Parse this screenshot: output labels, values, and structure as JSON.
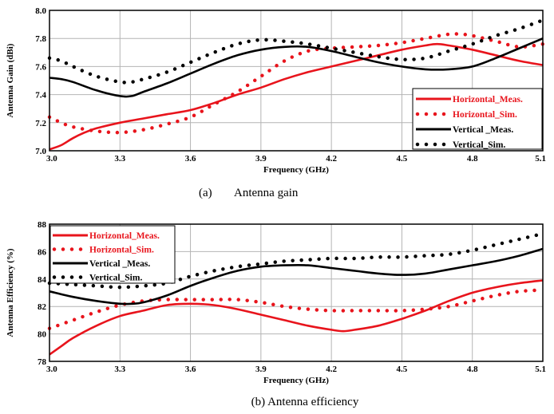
{
  "chart_data": [
    {
      "type": "line",
      "caption_label": "(a)",
      "caption_text": "Antenna gain",
      "xlabel": "Frequency (GHz)",
      "ylabel": "Antenna Gain (dBi)",
      "xlim": [
        3.0,
        5.1
      ],
      "ylim": [
        7.0,
        8.0
      ],
      "xticks": [
        "3.0",
        "3.3",
        "3.6",
        "3.9",
        "4.2",
        "4.5",
        "4.8",
        "5.1"
      ],
      "yticks": [
        "7.0",
        "7.2",
        "7.4",
        "7.6",
        "7.8",
        "8.0"
      ],
      "grid": true,
      "legend_position": "lower-right",
      "series": [
        {
          "name": "Horizontal_Meas.",
          "style": "solid",
          "color": "#e8141c",
          "x": [
            3.0,
            3.05,
            3.1,
            3.15,
            3.2,
            3.3,
            3.4,
            3.5,
            3.6,
            3.7,
            3.8,
            3.9,
            4.0,
            4.1,
            4.2,
            4.3,
            4.4,
            4.5,
            4.6,
            4.65,
            4.7,
            4.8,
            4.9,
            5.0,
            5.1
          ],
          "y": [
            7.01,
            7.04,
            7.09,
            7.13,
            7.16,
            7.2,
            7.23,
            7.26,
            7.29,
            7.34,
            7.4,
            7.45,
            7.51,
            7.56,
            7.6,
            7.64,
            7.68,
            7.72,
            7.75,
            7.76,
            7.75,
            7.72,
            7.68,
            7.64,
            7.61
          ]
        },
        {
          "name": "Horizontal_Sim.",
          "style": "dotted",
          "color": "#e8141c",
          "x": [
            3.0,
            3.05,
            3.1,
            3.2,
            3.3,
            3.4,
            3.5,
            3.6,
            3.7,
            3.8,
            3.9,
            4.0,
            4.1,
            4.2,
            4.3,
            4.4,
            4.5,
            4.6,
            4.7,
            4.75,
            4.8,
            4.9,
            5.0,
            5.1
          ],
          "y": [
            7.24,
            7.2,
            7.17,
            7.14,
            7.13,
            7.15,
            7.19,
            7.24,
            7.33,
            7.42,
            7.53,
            7.64,
            7.71,
            7.73,
            7.74,
            7.75,
            7.77,
            7.8,
            7.83,
            7.83,
            7.82,
            7.78,
            7.74,
            7.76
          ]
        },
        {
          "name": "Vertical _Meas.",
          "style": "solid",
          "color": "#000000",
          "x": [
            3.0,
            3.05,
            3.1,
            3.2,
            3.3,
            3.35,
            3.4,
            3.5,
            3.6,
            3.7,
            3.8,
            3.9,
            4.0,
            4.1,
            4.2,
            4.3,
            4.4,
            4.5,
            4.6,
            4.7,
            4.8,
            4.9,
            5.0,
            5.1
          ],
          "y": [
            7.52,
            7.51,
            7.49,
            7.43,
            7.39,
            7.39,
            7.42,
            7.48,
            7.55,
            7.62,
            7.68,
            7.72,
            7.74,
            7.74,
            7.71,
            7.67,
            7.63,
            7.6,
            7.58,
            7.58,
            7.6,
            7.66,
            7.73,
            7.8
          ]
        },
        {
          "name": "Vertical_Sim.",
          "style": "dotted",
          "color": "#000000",
          "x": [
            3.0,
            3.05,
            3.1,
            3.2,
            3.3,
            3.35,
            3.4,
            3.5,
            3.6,
            3.7,
            3.8,
            3.9,
            4.0,
            4.1,
            4.2,
            4.3,
            4.4,
            4.5,
            4.6,
            4.7,
            4.8,
            4.9,
            5.0,
            5.1
          ],
          "y": [
            7.66,
            7.64,
            7.6,
            7.53,
            7.49,
            7.49,
            7.51,
            7.56,
            7.63,
            7.7,
            7.76,
            7.79,
            7.78,
            7.76,
            7.73,
            7.7,
            7.67,
            7.65,
            7.66,
            7.71,
            7.76,
            7.82,
            7.87,
            7.93
          ]
        }
      ]
    },
    {
      "type": "line",
      "caption_label": "(b)",
      "caption_text": "Antenna efficiency",
      "xlabel": "Frequency (GHz)",
      "ylabel": "Antenna Efficiency (%)",
      "xlim": [
        3.0,
        5.1
      ],
      "ylim": [
        78,
        88
      ],
      "xticks": [
        "3.0",
        "3.3",
        "3.6",
        "3.9",
        "4.2",
        "4.5",
        "4.8",
        "5.1"
      ],
      "yticks": [
        "78",
        "80",
        "82",
        "84",
        "86",
        "88"
      ],
      "grid": true,
      "legend_position": "top-left",
      "series": [
        {
          "name": "Horizontal_Meas.",
          "style": "solid",
          "color": "#e8141c",
          "x": [
            3.0,
            3.05,
            3.1,
            3.2,
            3.3,
            3.4,
            3.5,
            3.6,
            3.7,
            3.8,
            3.9,
            4.0,
            4.1,
            4.2,
            4.25,
            4.3,
            4.4,
            4.5,
            4.6,
            4.7,
            4.8,
            4.9,
            5.0,
            5.1
          ],
          "y": [
            78.5,
            79.1,
            79.7,
            80.6,
            81.3,
            81.7,
            82.1,
            82.2,
            82.1,
            81.8,
            81.4,
            81.0,
            80.6,
            80.3,
            80.2,
            80.3,
            80.6,
            81.1,
            81.7,
            82.4,
            83.0,
            83.4,
            83.7,
            83.9
          ]
        },
        {
          "name": "Horizontal_Sim.",
          "style": "dotted",
          "color": "#e8141c",
          "x": [
            3.0,
            3.1,
            3.2,
            3.3,
            3.4,
            3.5,
            3.6,
            3.7,
            3.8,
            3.9,
            4.0,
            4.1,
            4.2,
            4.3,
            4.4,
            4.5,
            4.6,
            4.7,
            4.8,
            4.9,
            5.0,
            5.1
          ],
          "y": [
            80.4,
            81.0,
            81.6,
            82.1,
            82.4,
            82.5,
            82.5,
            82.5,
            82.5,
            82.3,
            82.0,
            81.8,
            81.7,
            81.7,
            81.7,
            81.7,
            81.8,
            82.0,
            82.4,
            82.8,
            83.1,
            83.2
          ]
        },
        {
          "name": "Vertical _Meas.",
          "style": "solid",
          "color": "#000000",
          "x": [
            3.0,
            3.1,
            3.2,
            3.3,
            3.35,
            3.4,
            3.5,
            3.6,
            3.7,
            3.8,
            3.9,
            4.0,
            4.1,
            4.2,
            4.3,
            4.4,
            4.5,
            4.6,
            4.7,
            4.8,
            4.9,
            5.0,
            5.1
          ],
          "y": [
            83.1,
            82.7,
            82.4,
            82.2,
            82.2,
            82.3,
            82.8,
            83.5,
            84.1,
            84.6,
            84.9,
            85.0,
            85.0,
            84.8,
            84.6,
            84.4,
            84.3,
            84.4,
            84.7,
            85.0,
            85.3,
            85.7,
            86.2
          ]
        },
        {
          "name": "Vertical_Sim.",
          "style": "dotted",
          "color": "#000000",
          "x": [
            3.0,
            3.1,
            3.2,
            3.3,
            3.4,
            3.5,
            3.6,
            3.7,
            3.8,
            3.9,
            4.0,
            4.1,
            4.2,
            4.3,
            4.4,
            4.5,
            4.6,
            4.7,
            4.8,
            4.9,
            5.0,
            5.1
          ],
          "y": [
            83.7,
            83.6,
            83.5,
            83.4,
            83.5,
            83.7,
            84.2,
            84.6,
            84.9,
            85.1,
            85.3,
            85.4,
            85.5,
            85.5,
            85.6,
            85.6,
            85.7,
            85.8,
            86.1,
            86.5,
            86.9,
            87.3
          ]
        }
      ]
    }
  ]
}
